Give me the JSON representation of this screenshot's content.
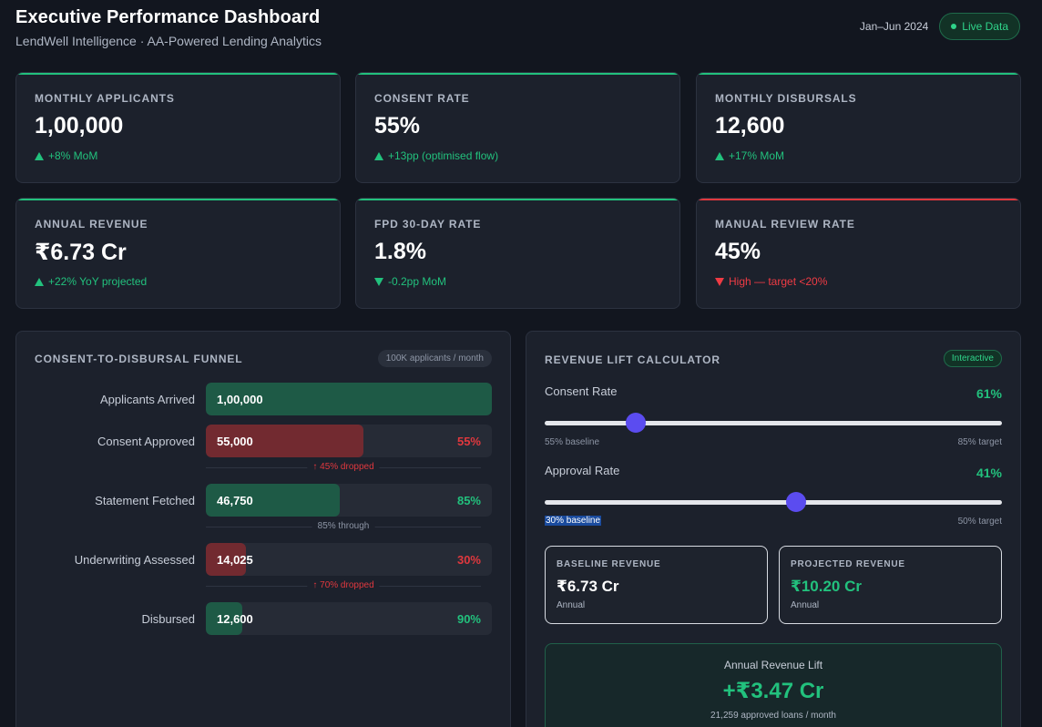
{
  "header": {
    "title": "Executive Performance Dashboard",
    "subtitle": "LendWell Intelligence · AA-Powered Lending Analytics",
    "date_range": "Jan–Jun 2024",
    "live_label": "Live Data"
  },
  "kpis": [
    {
      "label": "MONTHLY APPLICANTS",
      "value": "1,00,000",
      "change": "+8% MoM",
      "trend": "up"
    },
    {
      "label": "CONSENT RATE",
      "value": "55%",
      "change": "+13pp (optimised flow)",
      "trend": "up"
    },
    {
      "label": "MONTHLY DISBURSALS",
      "value": "12,600",
      "change": "+17% MoM",
      "trend": "up"
    },
    {
      "label": "ANNUAL REVENUE",
      "value": "₹6.73 Cr",
      "change": "+22% YoY projected",
      "trend": "up"
    },
    {
      "label": "FPD 30-DAY RATE",
      "value": "1.8%",
      "change": "-0.2pp MoM",
      "trend": "down-good"
    },
    {
      "label": "MANUAL REVIEW RATE",
      "value": "45%",
      "change": "High — target <20%",
      "trend": "down-bad"
    }
  ],
  "funnel": {
    "title": "CONSENT-TO-DISBURSAL FUNNEL",
    "chip": "100K applicants / month",
    "stages": [
      {
        "label": "Applicants Arrived",
        "value": "1,00,000",
        "pct": "",
        "fraction": 1.0,
        "color": "green"
      },
      {
        "label": "Consent Approved",
        "value": "55,000",
        "pct": "55%",
        "fraction": 0.55,
        "color": "red"
      },
      {
        "label": "Statement Fetched",
        "value": "46,750",
        "pct": "85%",
        "fraction": 0.4675,
        "color": "green"
      },
      {
        "label": "Underwriting Assessed",
        "value": "14,025",
        "pct": "30%",
        "fraction": 0.14025,
        "color": "red"
      },
      {
        "label": "Disbursed",
        "value": "12,600",
        "pct": "90%",
        "fraction": 0.126,
        "color": "green"
      }
    ],
    "notes": [
      {
        "text": "↑ 45% dropped",
        "tone": "red"
      },
      {
        "text": "85% through",
        "tone": "gray"
      },
      {
        "text": "↑ 70% dropped",
        "tone": "red"
      }
    ]
  },
  "calculator": {
    "title": "REVENUE LIFT CALCULATOR",
    "chip": "Interactive",
    "consent": {
      "label": "Consent Rate",
      "value": "61%",
      "min": 55,
      "max": 85,
      "current": 61,
      "min_caption": "55% baseline",
      "max_caption": "85% target"
    },
    "approval": {
      "label": "Approval Rate",
      "value": "41%",
      "min": 30,
      "max": 50,
      "current": 41,
      "min_caption": "30% baseline",
      "max_caption": "50% target"
    },
    "baseline": {
      "label": "BASELINE REVENUE",
      "value": "₹6.73 Cr",
      "sub": "Annual"
    },
    "projected": {
      "label": "PROJECTED REVENUE",
      "value": "₹10.20 Cr",
      "sub": "Annual"
    },
    "lift": {
      "title": "Annual Revenue Lift",
      "value": "+₹3.47 Cr",
      "sub": "21,259 approved loans / month"
    }
  }
}
